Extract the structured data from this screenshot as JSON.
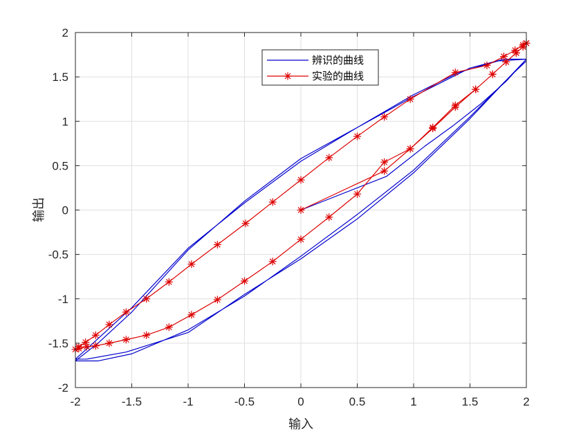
{
  "chart_data": {
    "type": "line",
    "title": "",
    "xlabel": "输入",
    "ylabel": "输出",
    "xlim": [
      -2,
      2
    ],
    "ylim": [
      -2,
      2
    ],
    "xticks": [
      -2,
      -1.5,
      -1,
      -0.5,
      0,
      0.5,
      1,
      1.5,
      2
    ],
    "yticks": [
      -2,
      -1.5,
      -1,
      -0.5,
      0,
      0.5,
      1,
      1.5,
      2
    ],
    "xtick_labels": [
      "-2",
      "-1.5",
      "-1",
      "-0.5",
      "0",
      "0.5",
      "1",
      "1.5",
      "2"
    ],
    "ytick_labels": [
      "-2",
      "-1.5",
      "-1",
      "-0.5",
      "0",
      "0.5",
      "1",
      "1.5",
      "2"
    ],
    "grid": true,
    "legend_position": "top-center",
    "series": [
      {
        "name": "辨识的曲线",
        "color": "#0000cc",
        "marker": "none",
        "x": [
          0,
          0.76,
          1.1,
          1.35,
          1.6,
          1.82,
          2.0,
          1.8,
          1.5,
          1.0,
          0.5,
          0,
          -0.5,
          -1.0,
          -1.5,
          -1.8,
          -2.0,
          -1.9,
          -1.55,
          -1.0,
          -0.5,
          0,
          0.5,
          1.0,
          1.5,
          1.85,
          2.0,
          1.75,
          1.4,
          1.0,
          0.5,
          0,
          -0.5,
          -1.0,
          -1.5,
          -1.8,
          -2.0,
          -1.8,
          -1.5,
          -1.0,
          -0.5,
          0,
          0.5,
          1.0,
          1.5,
          1.85,
          2.0
        ],
        "y": [
          0,
          0.38,
          0.72,
          0.95,
          1.2,
          1.45,
          1.7,
          1.7,
          1.6,
          1.28,
          0.93,
          0.55,
          0.08,
          -0.43,
          -1.1,
          -1.45,
          -1.68,
          -1.68,
          -1.6,
          -1.38,
          -0.95,
          -0.55,
          -0.1,
          0.42,
          1.03,
          1.5,
          1.7,
          1.68,
          1.55,
          1.3,
          0.93,
          0.58,
          0.1,
          -0.45,
          -1.15,
          -1.5,
          -1.7,
          -1.7,
          -1.62,
          -1.35,
          -0.97,
          -0.52,
          -0.05,
          0.45,
          1.05,
          1.5,
          1.68
        ]
      },
      {
        "name": "实验的曲线",
        "color": "#dd0000",
        "marker": "asterisk",
        "x": [
          0,
          0.74,
          0.97,
          1.17,
          1.37,
          1.55,
          1.7,
          1.82,
          1.91,
          1.97,
          2.0,
          1.97,
          1.9,
          1.8,
          1.65,
          1.37,
          0.97,
          0.74,
          0.5,
          0.25,
          0,
          -0.25,
          -0.49,
          -0.74,
          -0.97,
          -1.17,
          -1.37,
          -1.55,
          -1.7,
          -1.82,
          -1.91,
          -1.97,
          -2.0,
          -1.97,
          -1.9,
          -1.82,
          -1.7,
          -1.55,
          -1.37,
          -1.17,
          -0.97,
          -0.74,
          -0.5,
          -0.25,
          0,
          0.25,
          0.5,
          0.74,
          0.97,
          1.17,
          1.37,
          1.55,
          1.7,
          1.82,
          1.91,
          1.97,
          2.0
        ],
        "y": [
          0,
          0.44,
          0.69,
          0.92,
          1.16,
          1.36,
          1.53,
          1.67,
          1.77,
          1.84,
          1.88,
          1.86,
          1.8,
          1.73,
          1.63,
          1.55,
          1.25,
          1.05,
          0.83,
          0.59,
          0.34,
          0.09,
          -0.15,
          -0.39,
          -0.61,
          -0.81,
          -1.0,
          -1.15,
          -1.29,
          -1.41,
          -1.49,
          -1.54,
          -1.57,
          -1.56,
          -1.54,
          -1.53,
          -1.5,
          -1.46,
          -1.41,
          -1.32,
          -1.18,
          -1.01,
          -0.8,
          -0.58,
          -0.33,
          -0.08,
          0.18,
          0.54,
          0.69,
          0.93,
          1.18,
          1.36,
          1.53,
          1.67,
          1.77,
          1.84,
          1.88
        ]
      }
    ]
  }
}
